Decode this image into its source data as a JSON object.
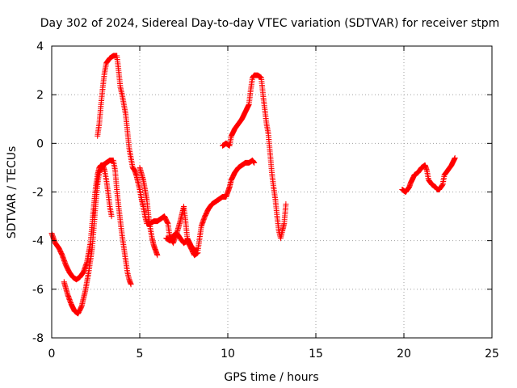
{
  "chart_data": {
    "type": "scatter",
    "title": "Day 302 of 2024, Sidereal Day-to-day VTEC variation (SDTVAR) for receiver stpm",
    "xlabel": "GPS time / hours",
    "ylabel": "SDTVAR / TECUs",
    "xlim": [
      0,
      25
    ],
    "ylim": [
      -8,
      4
    ],
    "xticks": [
      "0",
      "5",
      "10",
      "15",
      "20",
      "25"
    ],
    "yticks": [
      "-8",
      "-6",
      "-4",
      "-2",
      "0",
      "2",
      "4"
    ],
    "grid": true,
    "marker": "plus",
    "color": "#ff0000",
    "segments": [
      [
        [
          0.0,
          -3.7
        ],
        [
          0.2,
          -4.1
        ],
        [
          0.4,
          -4.3
        ],
        [
          0.6,
          -4.6
        ],
        [
          0.8,
          -5.0
        ],
        [
          1.0,
          -5.3
        ],
        [
          1.2,
          -5.5
        ],
        [
          1.4,
          -5.6
        ],
        [
          1.6,
          -5.5
        ],
        [
          1.8,
          -5.3
        ],
        [
          2.0,
          -4.9
        ],
        [
          2.2,
          -4.1
        ],
        [
          2.3,
          -3.3
        ],
        [
          2.4,
          -2.5
        ],
        [
          2.5,
          -1.8
        ],
        [
          2.6,
          -1.3
        ],
        [
          2.7,
          -1.0
        ],
        [
          2.8,
          -0.9
        ],
        [
          2.9,
          -0.9
        ],
        [
          3.0,
          -1.1
        ],
        [
          3.1,
          -1.5
        ],
        [
          3.2,
          -2.0
        ],
        [
          3.3,
          -2.6
        ],
        [
          3.4,
          -3.0
        ]
      ],
      [
        [
          0.7,
          -5.7
        ],
        [
          0.9,
          -6.2
        ],
        [
          1.1,
          -6.6
        ],
        [
          1.3,
          -6.9
        ],
        [
          1.5,
          -7.0
        ],
        [
          1.7,
          -6.7
        ],
        [
          1.9,
          -6.1
        ],
        [
          2.1,
          -5.3
        ],
        [
          2.3,
          -4.3
        ],
        [
          2.4,
          -3.4
        ],
        [
          2.5,
          -2.5
        ],
        [
          2.6,
          -1.7
        ],
        [
          2.7,
          -1.2
        ],
        [
          2.9,
          -0.9
        ],
        [
          3.1,
          -0.8
        ],
        [
          3.3,
          -0.7
        ],
        [
          3.5,
          -0.7
        ],
        [
          3.6,
          -1.1
        ],
        [
          3.7,
          -1.9
        ],
        [
          3.8,
          -2.6
        ],
        [
          3.9,
          -3.2
        ],
        [
          4.0,
          -3.8
        ],
        [
          4.1,
          -4.3
        ],
        [
          4.2,
          -4.8
        ],
        [
          4.3,
          -5.3
        ],
        [
          4.4,
          -5.6
        ],
        [
          4.5,
          -5.8
        ]
      ],
      [
        [
          2.6,
          0.3
        ],
        [
          2.7,
          0.8
        ],
        [
          2.8,
          1.6
        ],
        [
          2.9,
          2.3
        ],
        [
          3.0,
          2.9
        ],
        [
          3.1,
          3.3
        ],
        [
          3.3,
          3.5
        ],
        [
          3.5,
          3.6
        ],
        [
          3.7,
          3.6
        ],
        [
          3.8,
          3.0
        ],
        [
          3.9,
          2.3
        ],
        [
          4.0,
          2.0
        ],
        [
          4.1,
          1.6
        ],
        [
          4.2,
          1.2
        ],
        [
          4.3,
          0.5
        ],
        [
          4.4,
          -0.2
        ],
        [
          4.5,
          -0.6
        ],
        [
          4.6,
          -1.0
        ],
        [
          4.7,
          -1.1
        ],
        [
          4.8,
          -1.3
        ],
        [
          4.9,
          -1.6
        ],
        [
          5.0,
          -1.9
        ],
        [
          5.1,
          -2.3
        ],
        [
          5.2,
          -2.6
        ],
        [
          5.3,
          -3.0
        ],
        [
          5.4,
          -3.3
        ],
        [
          5.6,
          -3.3
        ],
        [
          5.8,
          -3.2
        ],
        [
          6.0,
          -3.2
        ],
        [
          6.2,
          -3.1
        ],
        [
          6.4,
          -3.0
        ],
        [
          6.6,
          -3.3
        ],
        [
          6.7,
          -3.8
        ],
        [
          6.9,
          -4.1
        ],
        [
          7.1,
          -3.7
        ],
        [
          7.3,
          -3.2
        ],
        [
          7.5,
          -2.6
        ],
        [
          7.6,
          -3.2
        ],
        [
          7.7,
          -3.9
        ],
        [
          7.9,
          -4.2
        ],
        [
          8.1,
          -4.4
        ],
        [
          8.3,
          -4.4
        ],
        [
          8.4,
          -3.9
        ],
        [
          8.5,
          -3.4
        ],
        [
          8.7,
          -3.0
        ],
        [
          8.9,
          -2.7
        ],
        [
          9.1,
          -2.5
        ],
        [
          9.3,
          -2.4
        ],
        [
          9.5,
          -2.3
        ],
        [
          9.7,
          -2.2
        ],
        [
          9.9,
          -2.2
        ],
        [
          10.0,
          -2.0
        ],
        [
          10.1,
          -1.8
        ],
        [
          10.2,
          -1.5
        ],
        [
          10.4,
          -1.2
        ],
        [
          10.6,
          -1.0
        ],
        [
          10.8,
          -0.9
        ],
        [
          11.0,
          -0.8
        ],
        [
          11.2,
          -0.8
        ],
        [
          11.4,
          -0.7
        ],
        [
          11.5,
          -0.8
        ]
      ],
      [
        [
          5.0,
          -1.0
        ],
        [
          5.2,
          -1.5
        ],
        [
          5.4,
          -2.3
        ],
        [
          5.5,
          -3.0
        ],
        [
          5.6,
          -3.5
        ],
        [
          5.7,
          -3.9
        ],
        [
          5.8,
          -4.2
        ],
        [
          5.9,
          -4.4
        ],
        [
          6.0,
          -4.6
        ]
      ],
      [
        [
          6.5,
          -3.9
        ],
        [
          6.7,
          -4.0
        ],
        [
          6.9,
          -3.8
        ],
        [
          7.1,
          -3.7
        ],
        [
          7.3,
          -3.9
        ],
        [
          7.5,
          -4.1
        ],
        [
          7.7,
          -4.0
        ],
        [
          7.9,
          -4.3
        ],
        [
          8.1,
          -4.6
        ],
        [
          8.3,
          -4.5
        ]
      ],
      [
        [
          9.7,
          -0.1
        ],
        [
          9.9,
          0.0
        ],
        [
          10.1,
          -0.1
        ],
        [
          10.2,
          0.3
        ],
        [
          10.4,
          0.6
        ],
        [
          10.6,
          0.8
        ],
        [
          10.8,
          1.0
        ],
        [
          11.0,
          1.3
        ],
        [
          11.2,
          1.6
        ],
        [
          11.3,
          2.2
        ],
        [
          11.4,
          2.7
        ],
        [
          11.5,
          2.8
        ],
        [
          11.7,
          2.8
        ],
        [
          11.9,
          2.7
        ],
        [
          12.0,
          2.0
        ],
        [
          12.1,
          1.4
        ],
        [
          12.2,
          0.8
        ],
        [
          12.3,
          0.4
        ],
        [
          12.4,
          -0.4
        ],
        [
          12.5,
          -1.2
        ],
        [
          12.6,
          -1.8
        ],
        [
          12.7,
          -2.3
        ],
        [
          12.8,
          -3.0
        ],
        [
          12.9,
          -3.6
        ],
        [
          13.0,
          -3.9
        ],
        [
          13.1,
          -3.6
        ],
        [
          13.2,
          -3.3
        ],
        [
          13.3,
          -2.5
        ]
      ],
      [
        [
          19.9,
          -1.9
        ],
        [
          20.1,
          -2.0
        ],
        [
          20.3,
          -1.8
        ],
        [
          20.4,
          -1.6
        ],
        [
          20.6,
          -1.3
        ],
        [
          20.8,
          -1.2
        ],
        [
          21.0,
          -1.0
        ],
        [
          21.2,
          -0.9
        ],
        [
          21.3,
          -1.1
        ],
        [
          21.4,
          -1.5
        ],
        [
          21.6,
          -1.7
        ],
        [
          21.8,
          -1.8
        ],
        [
          21.9,
          -1.9
        ],
        [
          22.0,
          -1.9
        ],
        [
          22.2,
          -1.7
        ],
        [
          22.3,
          -1.3
        ],
        [
          22.5,
          -1.1
        ],
        [
          22.7,
          -0.9
        ],
        [
          22.9,
          -0.6
        ]
      ]
    ]
  }
}
